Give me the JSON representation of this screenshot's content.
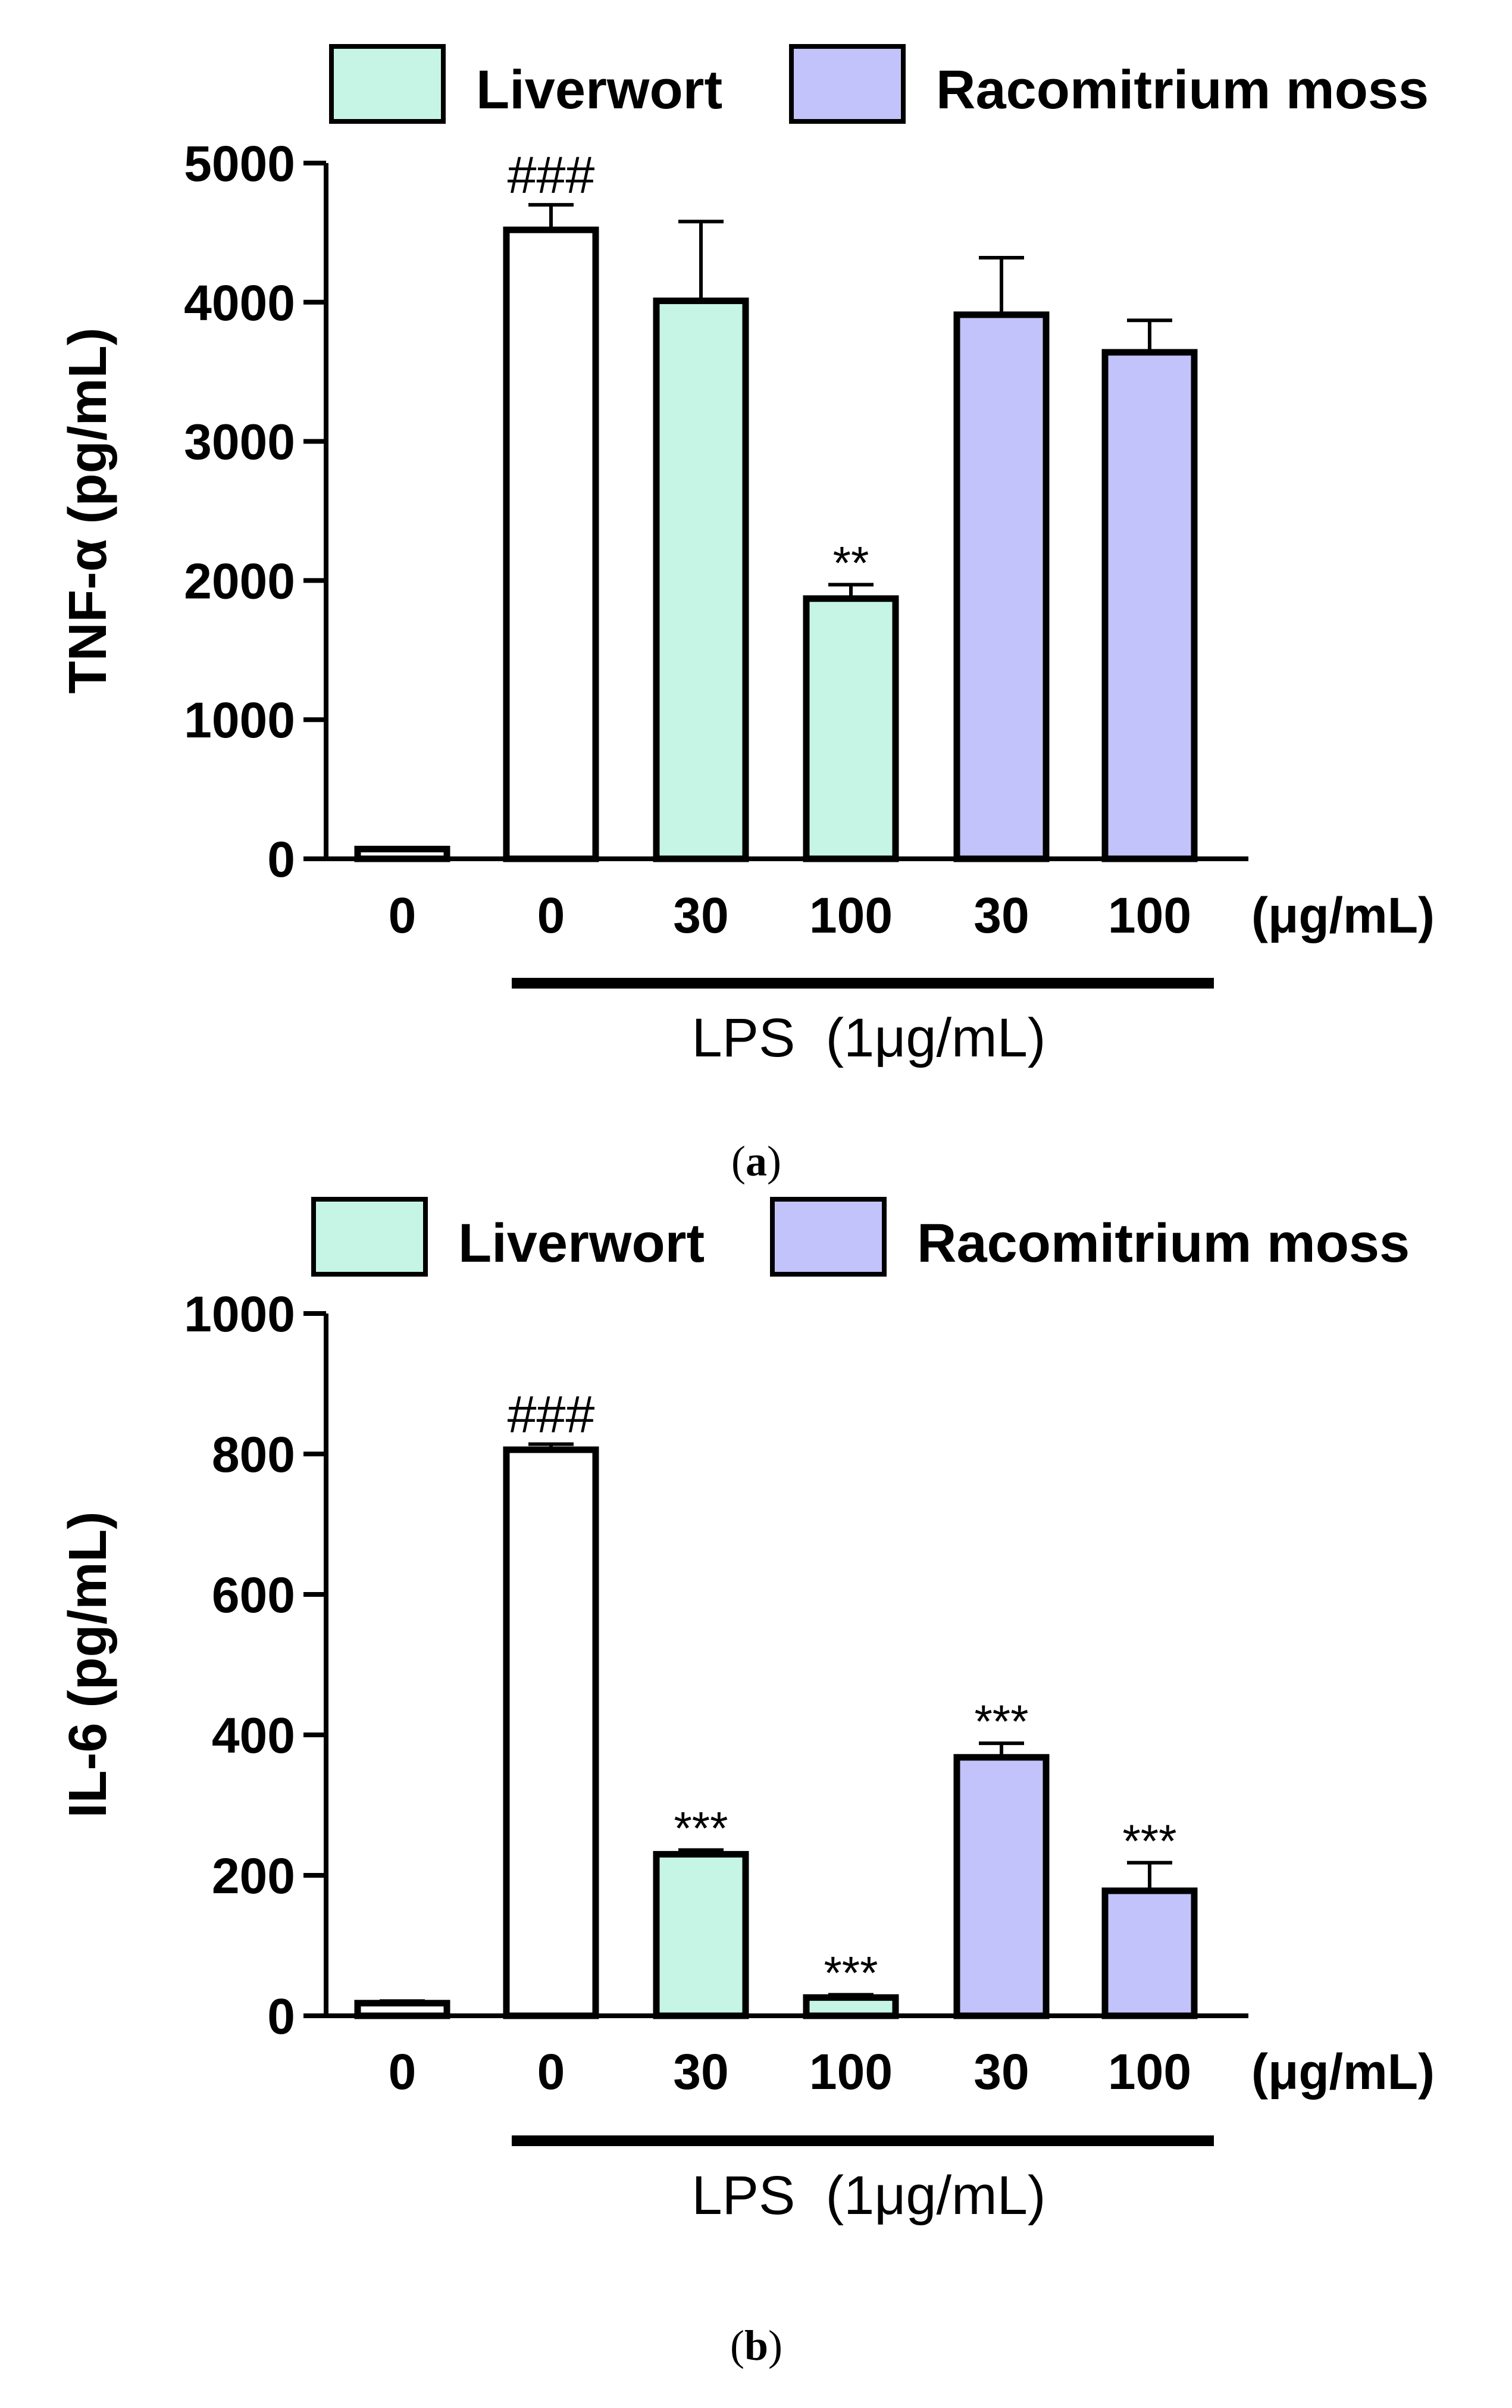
{
  "legend": [
    {
      "name": "Liverwort",
      "color": "#c6f5e6"
    },
    {
      "name": "Racomitrium moss",
      "color": "#c3c3fb"
    }
  ],
  "colors": {
    "control": "#ffffff",
    "outline": "#000000"
  },
  "chart_data": [
    {
      "type": "bar",
      "panel": "a",
      "caption_letter": "a",
      "ylabel": "TNF-α (pg/mL)",
      "ylim": [
        0,
        5000
      ],
      "yticks": [
        "0",
        "1000",
        "2000",
        "3000",
        "4000",
        "5000"
      ],
      "ytick_values": [
        0,
        1000,
        2000,
        3000,
        4000,
        5000
      ],
      "categories": [
        "0",
        "0",
        "30",
        "100",
        "30",
        "100"
      ],
      "unit_label": "(μg/mL)",
      "lps_label": "LPS  (1μg/mL)",
      "groups": [
        "control",
        "control",
        "liverwort",
        "liverwort",
        "moss",
        "moss"
      ],
      "values": [
        70,
        4520,
        4010,
        1870,
        3910,
        3640
      ],
      "errors": [
        0,
        180,
        570,
        100,
        410,
        230
      ],
      "annotations": [
        "",
        "###",
        "",
        "**",
        "",
        ""
      ]
    },
    {
      "type": "bar",
      "panel": "b",
      "caption_letter": "b",
      "ylabel": "IL-6 (pg/mL)",
      "ylim": [
        0,
        1000
      ],
      "yticks": [
        "0",
        "200",
        "400",
        "600",
        "800",
        "1000"
      ],
      "ytick_values": [
        0,
        200,
        400,
        600,
        800,
        1000
      ],
      "categories": [
        "0",
        "0",
        "30",
        "100",
        "30",
        "100"
      ],
      "unit_label": "(μg/mL)",
      "lps_label": "LPS  (1μg/mL)",
      "groups": [
        "control",
        "control",
        "liverwort",
        "liverwort",
        "moss",
        "moss"
      ],
      "values": [
        18,
        806,
        230,
        26,
        368,
        178
      ],
      "errors": [
        3,
        8,
        6,
        4,
        20,
        40
      ],
      "annotations": [
        "",
        "###",
        "***",
        "***",
        "***",
        "***"
      ]
    }
  ]
}
